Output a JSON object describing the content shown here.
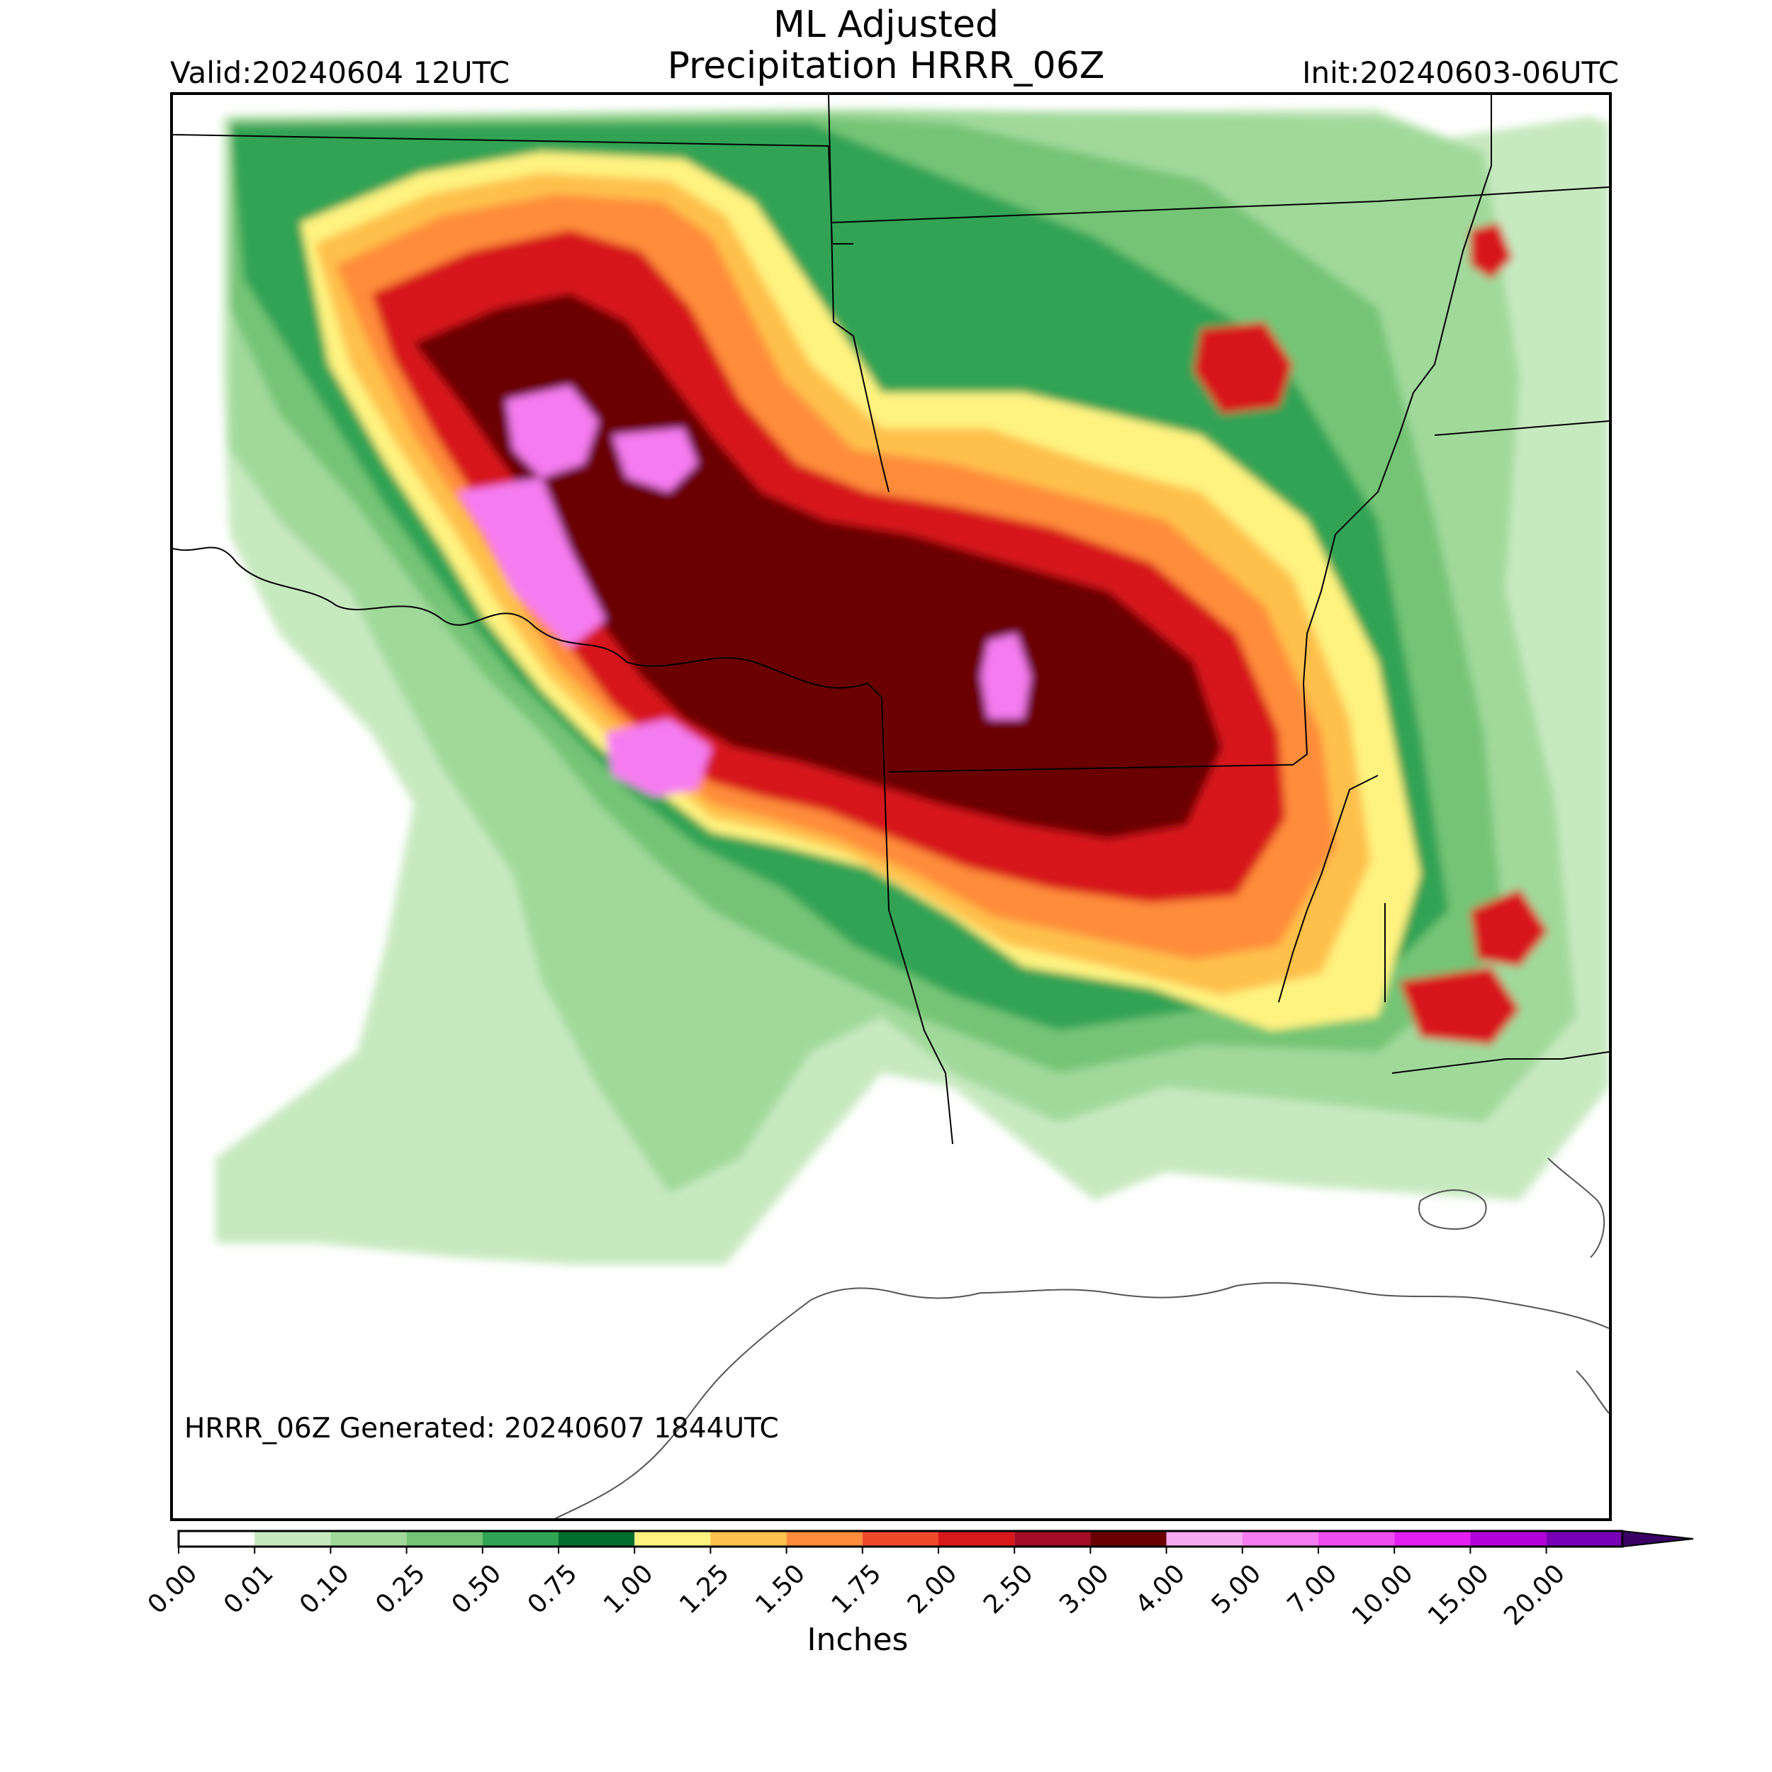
{
  "title_line1": "ML Adjusted",
  "title_line2": "Precipitation HRRR_06Z",
  "valid_text": "Valid:20240604 12UTC",
  "init_text": "Init:20240603-06UTC",
  "generated_text": "HRRR_06Z Generated: 20240607 1844UTC",
  "colorbar": {
    "label": "Inches",
    "ticks": [
      "0.00",
      "0.01",
      "0.10",
      "0.25",
      "0.50",
      "0.75",
      "1.00",
      "1.25",
      "1.50",
      "1.75",
      "2.00",
      "2.50",
      "3.00",
      "4.00",
      "5.00",
      "7.00",
      "10.00",
      "15.00",
      "20.00"
    ],
    "colors": [
      "#ffffff",
      "#c7e9c0",
      "#a1d99b",
      "#74c476",
      "#31a354",
      "#006d2c",
      "#fff380",
      "#ffc04c",
      "#ff8c3a",
      "#f0482b",
      "#d7191c",
      "#a30d25",
      "#6b0000",
      "#f7a8f0",
      "#f57cf0",
      "#f04df0",
      "#e21ef0",
      "#b200d8",
      "#7a00b8"
    ],
    "extend_color": "#3a0066"
  },
  "precip_colors": {
    "light_green": "#c7e9c0",
    "green": "#a1d99b",
    "mid_green": "#74c476",
    "dark_green": "#31a354",
    "deep_green": "#006d2c",
    "yellow": "#fff380",
    "orange": "#ffc04c",
    "dark_orange": "#ff8c3a",
    "red": "#d7191c",
    "maroon": "#6b0000",
    "pink": "#f57cf0"
  }
}
